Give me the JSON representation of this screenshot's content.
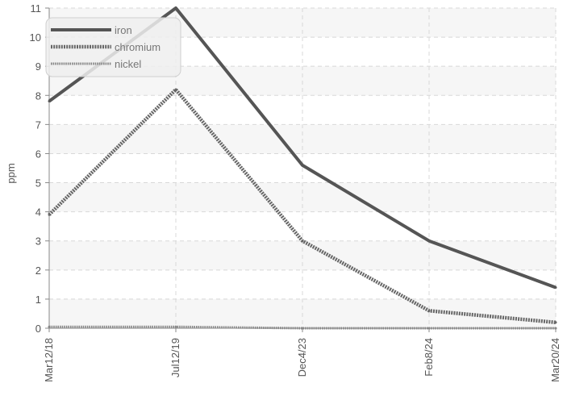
{
  "chart_data": {
    "type": "line",
    "title": "",
    "xlabel": "",
    "ylabel": "ppm",
    "categories": [
      "Mar12/18",
      "Jul12/19",
      "Dec4/23",
      "Feb8/24",
      "Mar20/24"
    ],
    "ylim": [
      0,
      11
    ],
    "yticks": [
      0,
      1,
      2,
      3,
      4,
      5,
      6,
      7,
      8,
      9,
      10,
      11
    ],
    "grid": true,
    "legend_position": "top-left",
    "series": [
      {
        "name": "iron",
        "values": [
          7.8,
          11,
          5.6,
          3.0,
          1.4
        ],
        "color": "#555555",
        "style": "solid"
      },
      {
        "name": "chromium",
        "values": [
          3.9,
          8.2,
          3.0,
          0.6,
          0.2
        ],
        "color": "#666666",
        "style": "dotted-thick"
      },
      {
        "name": "nickel",
        "values": [
          0.05,
          0.05,
          0,
          0,
          0
        ],
        "color": "#888888",
        "style": "dotted-thin"
      }
    ]
  }
}
